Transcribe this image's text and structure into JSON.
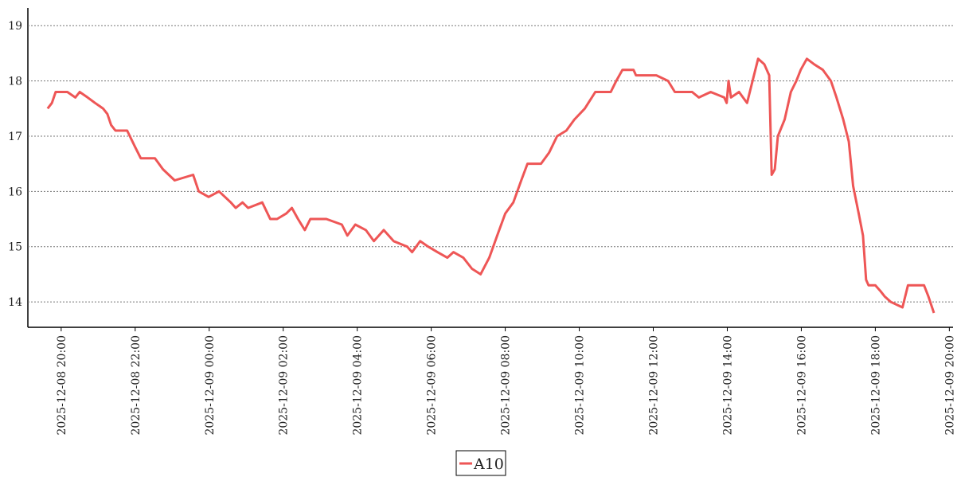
{
  "chart_data": {
    "type": "line",
    "x": [
      "2025-12-08 19:38",
      "2025-12-08 19:45",
      "2025-12-08 19:51",
      "2025-12-08 20:10",
      "2025-12-08 20:23",
      "2025-12-08 20:30",
      "2025-12-08 20:43",
      "2025-12-08 20:55",
      "2025-12-08 21:08",
      "2025-12-08 21:15",
      "2025-12-08 21:21",
      "2025-12-08 21:28",
      "2025-12-08 21:47",
      "2025-12-08 22:00",
      "2025-12-08 22:09",
      "2025-12-08 22:32",
      "2025-12-08 22:45",
      "2025-12-08 23:04",
      "2025-12-08 23:34",
      "2025-12-08 23:43",
      "2025-12-08 23:59",
      "2025-12-09 00:16",
      "2025-12-09 00:35",
      "2025-12-09 00:43",
      "2025-12-09 00:54",
      "2025-12-09 01:03",
      "2025-12-09 01:26",
      "2025-12-09 01:39",
      "2025-12-09 01:50",
      "2025-12-09 02:05",
      "2025-12-09 02:14",
      "2025-12-09 02:24",
      "2025-12-09 02:35",
      "2025-12-09 02:44",
      "2025-12-09 03:10",
      "2025-12-09 03:35",
      "2025-12-09 03:44",
      "2025-12-09 03:57",
      "2025-12-09 04:14",
      "2025-12-09 04:27",
      "2025-12-09 04:43",
      "2025-12-09 04:59",
      "2025-12-09 05:21",
      "2025-12-09 05:29",
      "2025-12-09 05:42",
      "2025-12-09 05:55",
      "2025-12-09 06:10",
      "2025-12-09 06:26",
      "2025-12-09 06:36",
      "2025-12-09 06:52",
      "2025-12-09 07:06",
      "2025-12-09 07:20",
      "2025-12-09 07:34",
      "2025-12-09 07:47",
      "2025-12-09 08:00",
      "2025-12-09 08:13",
      "2025-12-09 08:26",
      "2025-12-09 08:36",
      "2025-12-09 08:58",
      "2025-12-09 09:11",
      "2025-12-09 09:24",
      "2025-12-09 09:39",
      "2025-12-09 09:52",
      "2025-12-09 10:09",
      "2025-12-09 10:26",
      "2025-12-09 10:51",
      "2025-12-09 11:00",
      "2025-12-09 11:10",
      "2025-12-09 11:28",
      "2025-12-09 11:32",
      "2025-12-09 12:05",
      "2025-12-09 12:24",
      "2025-12-09 12:35",
      "2025-12-09 13:03",
      "2025-12-09 13:14",
      "2025-12-09 13:33",
      "2025-12-09 13:55",
      "2025-12-09 13:59",
      "2025-12-09 14:02",
      "2025-12-09 14:06",
      "2025-12-09 14:19",
      "2025-12-09 14:32",
      "2025-12-09 14:41",
      "2025-12-09 14:50",
      "2025-12-09 15:00",
      "2025-12-09 15:08",
      "2025-12-09 15:12",
      "2025-12-09 15:17",
      "2025-12-09 15:22",
      "2025-12-09 15:33",
      "2025-12-09 15:43",
      "2025-12-09 15:52",
      "2025-12-09 15:59",
      "2025-12-09 16:09",
      "2025-12-09 16:21",
      "2025-12-09 16:35",
      "2025-12-09 16:48",
      "2025-12-09 16:57",
      "2025-12-09 17:08",
      "2025-12-09 17:17",
      "2025-12-09 17:24",
      "2025-12-09 17:33",
      "2025-12-09 17:40",
      "2025-12-09 17:45",
      "2025-12-09 17:49",
      "2025-12-09 18:00",
      "2025-12-09 18:08",
      "2025-12-09 18:15",
      "2025-12-09 18:25",
      "2025-12-09 18:44",
      "2025-12-09 18:53",
      "2025-12-09 19:19",
      "2025-12-09 19:26",
      "2025-12-09 19:35"
    ],
    "series": [
      {
        "name": "A10",
        "color": "#ee5656",
        "values": [
          17.5,
          17.6,
          17.8,
          17.8,
          17.7,
          17.8,
          17.7,
          17.6,
          17.5,
          17.4,
          17.2,
          17.1,
          17.1,
          16.8,
          16.6,
          16.6,
          16.4,
          16.2,
          16.3,
          16.0,
          15.9,
          16.0,
          15.8,
          15.7,
          15.8,
          15.7,
          15.8,
          15.5,
          15.5,
          15.6,
          15.7,
          15.5,
          15.3,
          15.5,
          15.5,
          15.4,
          15.2,
          15.4,
          15.3,
          15.1,
          15.3,
          15.1,
          15.0,
          14.9,
          15.1,
          15.0,
          14.9,
          14.8,
          14.9,
          14.8,
          14.6,
          14.5,
          14.8,
          15.2,
          15.6,
          15.8,
          16.2,
          16.5,
          16.5,
          16.7,
          17.0,
          17.1,
          17.3,
          17.5,
          17.8,
          17.8,
          18.0,
          18.2,
          18.2,
          18.1,
          18.1,
          18.0,
          17.8,
          17.8,
          17.7,
          17.8,
          17.7,
          17.6,
          18.0,
          17.7,
          17.8,
          17.6,
          18.0,
          18.4,
          18.3,
          18.1,
          16.3,
          16.4,
          17.0,
          17.3,
          17.8,
          18.0,
          18.2,
          18.4,
          18.3,
          18.2,
          18.0,
          17.7,
          17.3,
          16.9,
          16.1,
          15.6,
          15.2,
          14.4,
          14.3,
          14.3,
          14.2,
          14.1,
          14.0,
          13.9,
          14.3,
          14.3,
          14.1,
          13.8
        ]
      }
    ],
    "xlim": [
      "2025-12-08 19:06",
      "2025-12-09 20:06"
    ],
    "xticks": [
      "2025-12-08 20:00",
      "2025-12-08 22:00",
      "2025-12-09 00:00",
      "2025-12-09 02:00",
      "2025-12-09 04:00",
      "2025-12-09 06:00",
      "2025-12-09 08:00",
      "2025-12-09 10:00",
      "2025-12-09 12:00",
      "2025-12-09 14:00",
      "2025-12-09 16:00",
      "2025-12-09 18:00",
      "2025-12-09 20:00"
    ],
    "ylim": [
      13.54,
      19.32
    ],
    "yticks": [
      14,
      15,
      16,
      17,
      18,
      19
    ],
    "grid": true,
    "legend": "bottom"
  }
}
